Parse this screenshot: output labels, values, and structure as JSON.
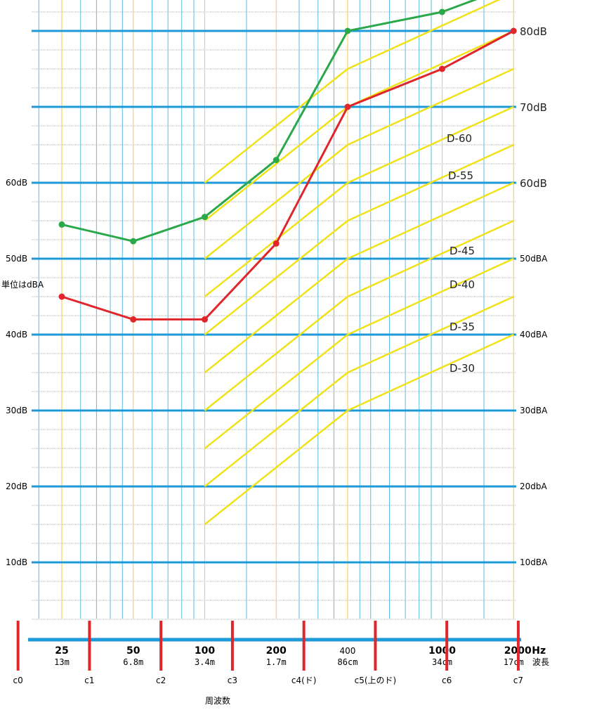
{
  "chart_data": {
    "type": "line",
    "title": "",
    "x_scale": "log",
    "grid": true,
    "unit_note": "単位はdBA",
    "xlabel": "周波数",
    "wavelength_label": "波長",
    "hz_suffix": "Hz",
    "y_ticks_left": [
      {
        "value": 10,
        "label": "10dB"
      },
      {
        "value": 20,
        "label": "20dB"
      },
      {
        "value": 30,
        "label": "30dB"
      },
      {
        "value": 40,
        "label": "40dB"
      },
      {
        "value": 50,
        "label": "50dB"
      },
      {
        "value": 60,
        "label": "60dB"
      }
    ],
    "y_ticks_right": [
      {
        "value": 10,
        "label": "10dBA"
      },
      {
        "value": 20,
        "label": "20dbA"
      },
      {
        "value": 30,
        "label": "30dBA"
      },
      {
        "value": 40,
        "label": "40dBA"
      },
      {
        "value": 50,
        "label": "50dBA"
      },
      {
        "value": 60,
        "label": "60dB"
      },
      {
        "value": 70,
        "label": "70dB"
      },
      {
        "value": 80,
        "label": "80dB"
      }
    ],
    "x_ticks": [
      {
        "freq": 25,
        "label": "25",
        "wavelength": "13m",
        "bold": true
      },
      {
        "freq": 50,
        "label": "50",
        "wavelength": "6.8m",
        "bold": true
      },
      {
        "freq": 100,
        "label": "100",
        "wavelength": "3.4m",
        "bold": true
      },
      {
        "freq": 200,
        "label": "200",
        "wavelength": "1.7m",
        "bold": true
      },
      {
        "freq": 400,
        "label": "400",
        "wavelength": "86cm",
        "bold": false
      },
      {
        "freq": 1000,
        "label": "1000",
        "wavelength": "34cm",
        "bold": true
      },
      {
        "freq": 2000,
        "label": "2000",
        "wavelength": "17cm",
        "bold": true
      }
    ],
    "notes": [
      {
        "freq": 16.35,
        "label": "c0"
      },
      {
        "freq": 32.7,
        "label": "c1"
      },
      {
        "freq": 65.4,
        "label": "c2"
      },
      {
        "freq": 130.8,
        "label": "c3"
      },
      {
        "freq": 261.6,
        "label": "c4(ド)"
      },
      {
        "freq": 523.3,
        "label": "c5(上のド)"
      },
      {
        "freq": 1046.5,
        "label": "c6"
      },
      {
        "freq": 2093,
        "label": "c7"
      }
    ],
    "d_labels": [
      "D-60",
      "D-55",
      "D-45",
      "D-40",
      "D-35",
      "D-30"
    ],
    "series": [
      {
        "color": "#2ba84a",
        "points": [
          [
            25,
            54.5
          ],
          [
            50,
            52.3
          ],
          [
            100,
            55.5
          ],
          [
            200,
            63
          ],
          [
            400,
            80
          ],
          [
            1000,
            82.5
          ],
          [
            2000,
            86
          ]
        ]
      },
      {
        "color": "#e0252b",
        "points": [
          [
            25,
            45
          ],
          [
            50,
            42
          ],
          [
            100,
            42
          ],
          [
            200,
            52
          ],
          [
            400,
            70
          ],
          [
            1000,
            75
          ],
          [
            2000,
            80
          ]
        ]
      }
    ],
    "d_curves": [
      {
        "points": [
          [
            100,
            60
          ],
          [
            400,
            75
          ],
          [
            2000,
            85
          ]
        ]
      },
      {
        "points": [
          [
            100,
            55
          ],
          [
            400,
            70
          ],
          [
            2000,
            80
          ]
        ]
      },
      {
        "points": [
          [
            100,
            50
          ],
          [
            400,
            65
          ],
          [
            2000,
            75
          ]
        ]
      },
      {
        "points": [
          [
            100,
            45
          ],
          [
            400,
            60
          ],
          [
            2000,
            70
          ]
        ]
      },
      {
        "points": [
          [
            100,
            40
          ],
          [
            400,
            55
          ],
          [
            2000,
            65
          ]
        ]
      },
      {
        "points": [
          [
            100,
            35
          ],
          [
            400,
            50
          ],
          [
            2000,
            60
          ]
        ]
      },
      {
        "points": [
          [
            100,
            30
          ],
          [
            400,
            45
          ],
          [
            2000,
            55
          ]
        ]
      },
      {
        "points": [
          [
            100,
            25
          ],
          [
            400,
            40
          ],
          [
            2000,
            50
          ]
        ]
      },
      {
        "points": [
          [
            100,
            20
          ],
          [
            400,
            35
          ],
          [
            2000,
            45
          ]
        ]
      },
      {
        "points": [
          [
            100,
            15
          ],
          [
            400,
            30
          ],
          [
            2000,
            40
          ]
        ]
      }
    ],
    "colors": {
      "grid_major": "#1e9ad8",
      "grid_minor": "#5bbbe5",
      "vline": "#f5c94a",
      "d_curve": "#f0e21a",
      "marker": "#e0252b"
    }
  }
}
